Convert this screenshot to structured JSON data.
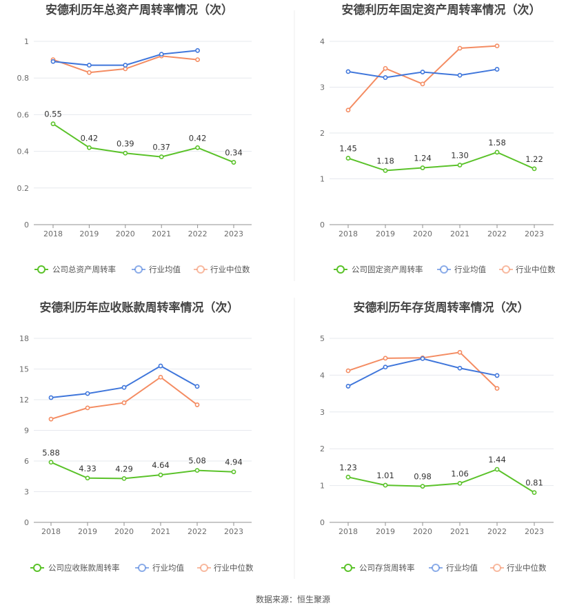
{
  "colors": {
    "company": "#5ac229",
    "industry_avg": "#3f76db",
    "industry_median": "#f48c62"
  },
  "source": "数据来源：恒生聚源",
  "chart_data": [
    {
      "type": "line",
      "title": "安德利历年总资产周转率情况（次）",
      "categories": [
        "2018",
        "2019",
        "2020",
        "2021",
        "2022",
        "2023"
      ],
      "ylim": [
        0,
        1
      ],
      "yticks": [
        "0",
        "0.2",
        "0.4",
        "0.6",
        "0.8",
        "1"
      ],
      "series": [
        {
          "name": "公司总资产周转率",
          "key": "company",
          "values": [
            0.55,
            0.42,
            0.39,
            0.37,
            0.42,
            0.34
          ],
          "labels": [
            "0.55",
            "0.42",
            "0.39",
            "0.37",
            "0.42",
            "0.34"
          ]
        },
        {
          "name": "行业均值",
          "key": "industry_avg",
          "values": [
            0.89,
            0.87,
            0.87,
            0.93,
            0.95,
            null
          ]
        },
        {
          "name": "行业中位数",
          "key": "industry_median",
          "values": [
            0.9,
            0.83,
            0.85,
            0.92,
            0.9,
            null
          ]
        }
      ]
    },
    {
      "type": "line",
      "title": "安德利历年固定资产周转率情况（次）",
      "categories": [
        "2018",
        "2019",
        "2020",
        "2021",
        "2022",
        "2023"
      ],
      "ylim": [
        0,
        4
      ],
      "yticks": [
        "0",
        "1",
        "2",
        "3",
        "4"
      ],
      "series": [
        {
          "name": "公司固定资产周转率",
          "key": "company",
          "values": [
            1.45,
            1.18,
            1.24,
            1.3,
            1.58,
            1.22
          ],
          "labels": [
            "1.45",
            "1.18",
            "1.24",
            "1.30",
            "1.58",
            "1.22"
          ]
        },
        {
          "name": "行业均值",
          "key": "industry_avg",
          "values": [
            3.34,
            3.21,
            3.33,
            3.26,
            3.39,
            null
          ]
        },
        {
          "name": "行业中位数",
          "key": "industry_median",
          "values": [
            2.5,
            3.41,
            3.07,
            3.85,
            3.9,
            null
          ]
        }
      ]
    },
    {
      "type": "line",
      "title": "安德利历年应收账款周转率情况（次）",
      "categories": [
        "2018",
        "2019",
        "2020",
        "2021",
        "2022",
        "2023"
      ],
      "ylim": [
        0,
        18
      ],
      "yticks": [
        "0",
        "3",
        "6",
        "9",
        "12",
        "15",
        "18"
      ],
      "series": [
        {
          "name": "公司应收账款周转率",
          "key": "company",
          "values": [
            5.88,
            4.33,
            4.29,
            4.64,
            5.08,
            4.94
          ],
          "labels": [
            "5.88",
            "4.33",
            "4.29",
            "4.64",
            "5.08",
            "4.94"
          ]
        },
        {
          "name": "行业均值",
          "key": "industry_avg",
          "values": [
            12.2,
            12.6,
            13.2,
            15.3,
            13.3,
            null
          ]
        },
        {
          "name": "行业中位数",
          "key": "industry_median",
          "values": [
            10.1,
            11.2,
            11.7,
            14.2,
            11.5,
            null
          ]
        }
      ]
    },
    {
      "type": "line",
      "title": "安德利历年存货周转率情况（次）",
      "categories": [
        "2018",
        "2019",
        "2020",
        "2021",
        "2022",
        "2023"
      ],
      "ylim": [
        0,
        5
      ],
      "yticks": [
        "0",
        "1",
        "2",
        "3",
        "4",
        "5"
      ],
      "series": [
        {
          "name": "公司存货周转率",
          "key": "company",
          "values": [
            1.23,
            1.01,
            0.98,
            1.06,
            1.44,
            0.81
          ],
          "labels": [
            "1.23",
            "1.01",
            "0.98",
            "1.06",
            "1.44",
            "0.81"
          ]
        },
        {
          "name": "行业均值",
          "key": "industry_avg",
          "values": [
            3.7,
            4.22,
            4.45,
            4.19,
            3.99,
            null
          ]
        },
        {
          "name": "行业中位数",
          "key": "industry_median",
          "values": [
            4.12,
            4.46,
            4.47,
            4.62,
            3.64,
            null
          ]
        }
      ]
    }
  ]
}
